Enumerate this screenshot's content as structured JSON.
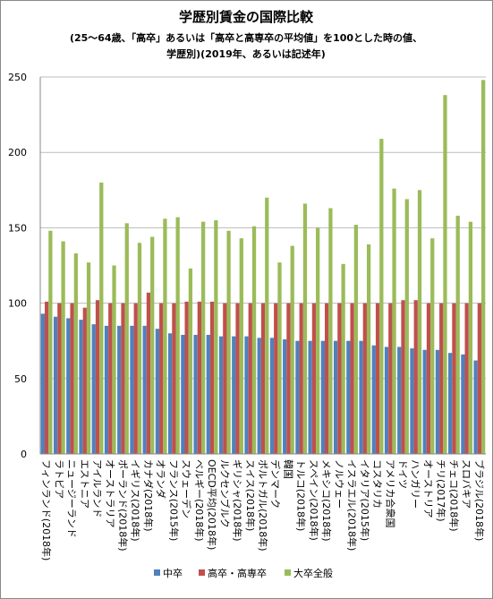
{
  "chart_data": {
    "type": "bar",
    "title": "学歴別賃金の国際比較",
    "subtitle": [
      "(25〜64歳、「高卒」あるいは「高卒と高専卒の平均値」を100とした時の値、",
      "学歴別)(2019年、あるいは記述年)"
    ],
    "categories": [
      "フィンランド(2018年)",
      "ラトビア",
      "ニュージーランド",
      "エストニア",
      "アイルランド",
      "オーストラリア",
      "ポーランド(2018年)",
      "イギリス(2018年)",
      "カナダ(2018年)",
      "オランダ",
      "フランス(2015年)",
      "スウェーデン",
      "ベルギー(2018年)",
      "OECD平均(2018年)",
      "ルクセンブルク",
      "ギリシャ(2018年)",
      "スイス(2018年)",
      "ポルトガル(2018年)",
      "デンマーク",
      "韓国",
      "トルコ(2018年)",
      "スペイン(2018年)",
      "メキシコ(2018年)",
      "ノルウェー",
      "イスラエル(2018年)",
      "イタリア(2015年)",
      "コスタリカ",
      "アメリカ合衆国",
      "ドイツ",
      "ハンガリー",
      "オーストリア",
      "チリ(2017年)",
      "チェコ(2018年)",
      "スロバキア",
      "ブラジル(2018年)"
    ],
    "series": [
      {
        "name": "中卒",
        "color": "#4f81bd",
        "values": [
          93,
          91,
          90,
          89,
          86,
          85,
          85,
          85,
          85,
          83,
          80,
          79,
          79,
          79,
          78,
          78,
          78,
          77,
          77,
          76,
          75,
          75,
          75,
          75,
          75,
          75,
          72,
          71,
          71,
          70,
          69,
          69,
          67,
          66,
          62
        ]
      },
      {
        "name": "高卒・高専卒",
        "color": "#c0504d",
        "values": [
          101,
          100,
          100,
          97,
          102,
          100,
          100,
          100,
          107,
          100,
          100,
          101,
          101,
          101,
          100,
          100,
          100,
          100,
          100,
          100,
          100,
          100,
          100,
          100,
          100,
          100,
          100,
          100,
          102,
          102,
          100,
          100,
          100,
          100,
          100
        ]
      },
      {
        "name": "大卒全般",
        "color": "#9bbb59",
        "values": [
          148,
          141,
          133,
          127,
          180,
          125,
          153,
          140,
          144,
          156,
          157,
          123,
          154,
          155,
          148,
          143,
          151,
          170,
          127,
          138,
          166,
          150,
          163,
          126,
          152,
          139,
          209,
          176,
          169,
          175,
          143,
          238,
          158,
          154,
          248
        ]
      }
    ],
    "ylim": [
      0,
      250
    ],
    "yticks": [
      0,
      50,
      100,
      150,
      200,
      250
    ],
    "grid": true,
    "legend": "bottom"
  }
}
